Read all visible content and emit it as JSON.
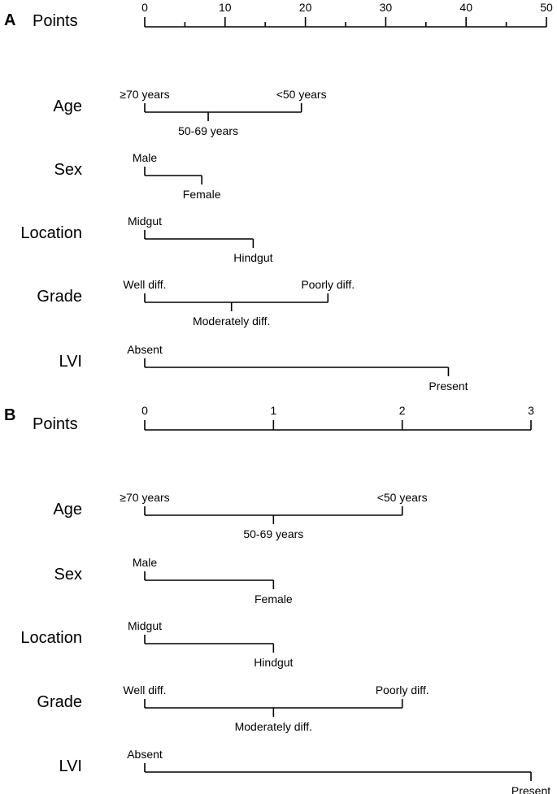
{
  "chart_data": [
    {
      "type": "nomogram",
      "panel_label": "A",
      "points_label": "Points",
      "axis": {
        "min": 0,
        "max": 50,
        "major_ticks": [
          0,
          10,
          20,
          30,
          40,
          50
        ],
        "minor_step": 5
      },
      "variables": [
        {
          "name": "Age",
          "levels": [
            {
              "label": "≥70 years",
              "points": 0
            },
            {
              "label": "50-69 years",
              "points": 7.9
            },
            {
              "label": "<50 years",
              "points": 19.5
            }
          ]
        },
        {
          "name": "Sex",
          "levels": [
            {
              "label": "Male",
              "points": 0
            },
            {
              "label": "Female",
              "points": 7.1
            }
          ]
        },
        {
          "name": "Location",
          "levels": [
            {
              "label": "Midgut",
              "points": 0
            },
            {
              "label": "Hindgut",
              "points": 13.5
            }
          ]
        },
        {
          "name": "Grade",
          "levels": [
            {
              "label": "Well diff.",
              "points": 0
            },
            {
              "label": "Moderately diff.",
              "points": 10.8
            },
            {
              "label": "Poorly diff.",
              "points": 22.8
            }
          ]
        },
        {
          "name": "LVI",
          "levels": [
            {
              "label": "Absent",
              "points": 0
            },
            {
              "label": "Present",
              "points": 37.8
            }
          ]
        }
      ]
    },
    {
      "type": "nomogram",
      "panel_label": "B",
      "points_label": "Points",
      "axis": {
        "min": 0,
        "max": 3,
        "major_ticks": [
          0,
          1,
          2,
          3
        ],
        "minor_step": null
      },
      "variables": [
        {
          "name": "Age",
          "levels": [
            {
              "label": "≥70 years",
              "points": 0
            },
            {
              "label": "50-69 years",
              "points": 1.0
            },
            {
              "label": "<50 years",
              "points": 2.0
            }
          ]
        },
        {
          "name": "Sex",
          "levels": [
            {
              "label": "Male",
              "points": 0
            },
            {
              "label": "Female",
              "points": 1.0
            }
          ]
        },
        {
          "name": "Location",
          "levels": [
            {
              "label": "Midgut",
              "points": 0
            },
            {
              "label": "Hindgut",
              "points": 1.0
            }
          ]
        },
        {
          "name": "Grade",
          "levels": [
            {
              "label": "Well diff.",
              "points": 0
            },
            {
              "label": "Moderately diff.",
              "points": 1.0
            },
            {
              "label": "Poorly diff.",
              "points": 2.0
            }
          ]
        },
        {
          "name": "LVI",
          "levels": [
            {
              "label": "Absent",
              "points": 0
            },
            {
              "label": "Present",
              "points": 3.0
            }
          ]
        }
      ]
    }
  ]
}
